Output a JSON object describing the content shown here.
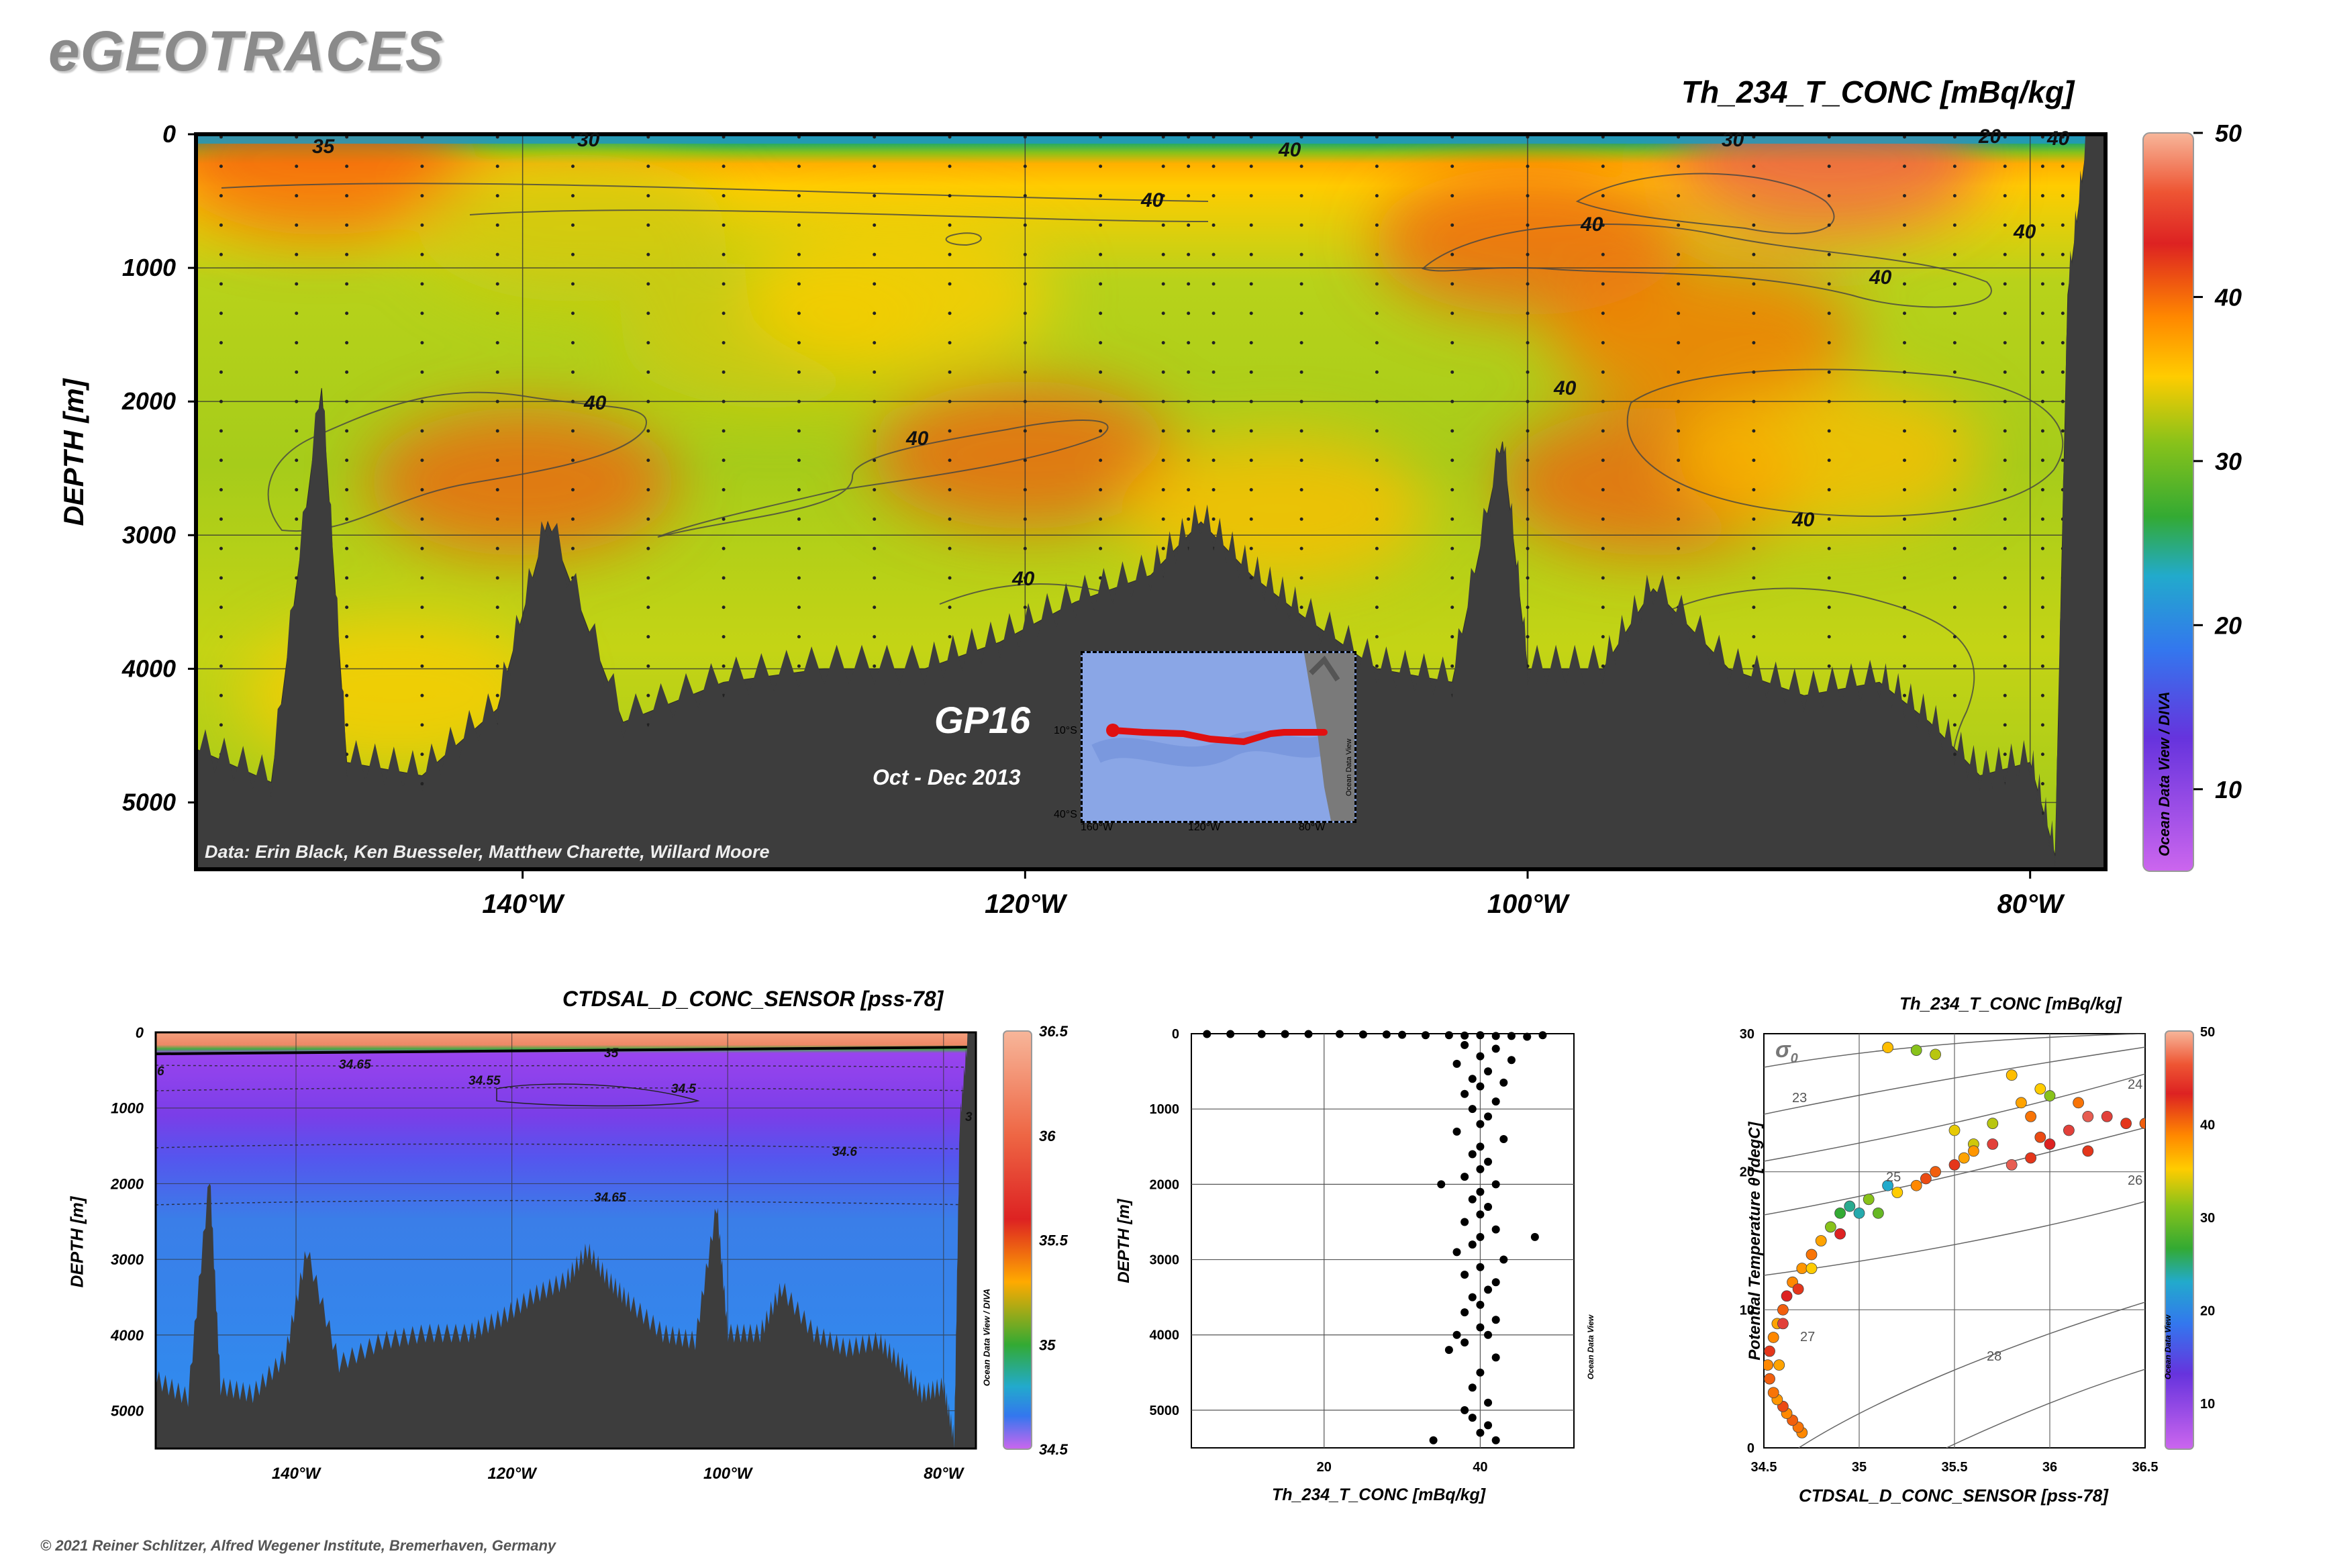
{
  "header": {
    "brand": "eGEOTRACES"
  },
  "main_section": {
    "variable": "Th_234_T_CONC [mBq/kg]",
    "ylabel": "DEPTH [m]",
    "depth_ticks": [
      "0",
      "1000",
      "2000",
      "3000",
      "4000",
      "5000"
    ],
    "lon_ticks": [
      "140°W",
      "120°W",
      "100°W",
      "80°W"
    ],
    "colorbar_ticks": [
      "50",
      "40",
      "30",
      "20",
      "10"
    ],
    "credit": "Data: Erin Black, Ken Buesseler, Matthew Charette, Willard Moore",
    "watermark": "Ocean Data View / DIVA",
    "cruise": "GP16",
    "cruise_dates": "Oct - Dec 2013",
    "inset": {
      "lat_labels": [
        "10°S",
        "40°S"
      ],
      "lon_labels": [
        "160°W",
        "120°W",
        "80°W"
      ],
      "watermark": "Ocean Data View"
    },
    "contour_labels": [
      "35",
      "30",
      "40",
      "40",
      "40",
      "40",
      "40",
      "40",
      "40",
      "40",
      "40",
      "30",
      "20",
      "40",
      "40"
    ]
  },
  "salinity_section": {
    "variable": "CTDSAL_D_CONC_SENSOR [pss-78]",
    "ylabel": "DEPTH [m]",
    "depth_ticks": [
      "0",
      "1000",
      "2000",
      "3000",
      "4000",
      "5000"
    ],
    "lon_ticks": [
      "140°W",
      "120°W",
      "100°W",
      "80°W"
    ],
    "colorbar_ticks": [
      "36.5",
      "36",
      "35.5",
      "35",
      "34.5"
    ],
    "watermark": "Ocean Data View / DIVA",
    "contour_labels": [
      "34.65",
      "34.55",
      "34.5",
      "34.6",
      "34.65",
      "35",
      "6",
      "3"
    ]
  },
  "scatter_profile": {
    "xlabel": "Th_234_T_CONC [mBq/kg]",
    "ylabel": "DEPTH [m]",
    "x_ticks": [
      "20",
      "40"
    ],
    "y_ticks": [
      "0",
      "1000",
      "2000",
      "3000",
      "4000",
      "5000"
    ],
    "watermark": "Ocean Data View"
  },
  "ts_plot": {
    "title": "Th_234_T_CONC [mBq/kg]",
    "xlabel": "CTDSAL_D_CONC_SENSOR [pss-78]",
    "ylabel": "Potential Temperature θ [degC]",
    "x_ticks": [
      "34.5",
      "35",
      "35.5",
      "36",
      "36.5"
    ],
    "y_ticks": [
      "0",
      "10",
      "20",
      "30"
    ],
    "sigma_label": "σ",
    "sigma_sub": "0",
    "isopycnal_labels": [
      "23",
      "24",
      "25",
      "26",
      "27",
      "28"
    ],
    "colorbar_ticks": [
      "50",
      "40",
      "30",
      "20",
      "10"
    ],
    "watermark": "Ocean Data View"
  },
  "footer": {
    "copyright": "© 2021 Reiner Schlitzer, Alfred Wegener Institute, Bremerhaven, Germany"
  },
  "chart_data": [
    {
      "type": "heatmap",
      "title": "Th_234_T_CONC [mBq/kg]",
      "xlabel": "",
      "ylabel": "DEPTH [m]",
      "x_range": [
        -153,
        -77
      ],
      "ylim": [
        5500,
        0
      ],
      "color_range": [
        5,
        50
      ],
      "colormap": [
        "#cc66ee",
        "#6633dd",
        "#3377ee",
        "#22aacc",
        "#33aa33",
        "#88c21a",
        "#ffcc00",
        "#ff8800",
        "#dd2222",
        "#f7b69a"
      ],
      "seafloor": [
        [
          -153,
          4600
        ],
        [
          -150,
          4850
        ],
        [
          -148,
          1900
        ],
        [
          -147,
          4700
        ],
        [
          -144,
          4800
        ],
        [
          -141,
          4300
        ],
        [
          -139,
          2900
        ],
        [
          -136,
          4400
        ],
        [
          -132,
          4100
        ],
        [
          -128,
          4000
        ],
        [
          -124,
          4000
        ],
        [
          -121,
          3800
        ],
        [
          -118,
          3500
        ],
        [
          -115,
          3300
        ],
        [
          -113,
          2900
        ],
        [
          -111,
          3300
        ],
        [
          -109,
          3600
        ],
        [
          -106,
          4000
        ],
        [
          -103,
          4100
        ],
        [
          -101,
          2300
        ],
        [
          -100,
          4000
        ],
        [
          -97,
          4000
        ],
        [
          -95,
          3400
        ],
        [
          -92,
          4000
        ],
        [
          -89,
          4200
        ],
        [
          -86,
          4100
        ],
        [
          -84,
          4400
        ],
        [
          -82,
          4800
        ],
        [
          -80,
          4700
        ],
        [
          -79,
          5400
        ],
        [
          -78.5,
          1200
        ],
        [
          -77.7,
          0
        ]
      ],
      "anomalies": [
        {
          "lon": -148,
          "depth": 200,
          "value": 42
        },
        {
          "lon": -138,
          "depth": 700,
          "value": 33
        },
        {
          "lon": -130,
          "depth": 1500,
          "value": 33
        },
        {
          "lon": -140,
          "depth": 2600,
          "value": 42
        },
        {
          "lon": -120,
          "depth": 2400,
          "value": 42
        },
        {
          "lon": -110,
          "depth": 2800,
          "value": 36
        },
        {
          "lon": -95,
          "depth": 2600,
          "value": 42
        },
        {
          "lon": -88,
          "depth": 2400,
          "value": 36
        },
        {
          "lon": -88,
          "depth": 200,
          "value": 47
        },
        {
          "lon": -100,
          "depth": 800,
          "value": 42
        },
        {
          "lon": -125,
          "depth": 1200,
          "value": 35
        },
        {
          "lon": -93,
          "depth": 1500,
          "value": 41
        },
        {
          "lon": -145,
          "depth": 4200,
          "value": 35
        }
      ]
    },
    {
      "type": "heatmap",
      "title": "CTDSAL_D_CONC_SENSOR [pss-78]",
      "ylabel": "DEPTH [m]",
      "x_range": [
        -153,
        -77
      ],
      "ylim": [
        5500,
        0
      ],
      "color_range": [
        34.5,
        36.5
      ]
    },
    {
      "type": "scatter",
      "xlabel": "Th_234_T_CONC [mBq/kg]",
      "ylabel": "DEPTH [m]",
      "xlim": [
        3,
        52
      ],
      "ylim": [
        5500,
        0
      ],
      "x": [
        5,
        8,
        12,
        15,
        18,
        22,
        25,
        28,
        30,
        33,
        36,
        38,
        40,
        42,
        44,
        46,
        48,
        38,
        42,
        40,
        44,
        37,
        41,
        39,
        43,
        40,
        38,
        42,
        39,
        41,
        40,
        37,
        43,
        40,
        39,
        41,
        40,
        38,
        42,
        40,
        39,
        41,
        40,
        38,
        42,
        40,
        39,
        37,
        43,
        40,
        38,
        42,
        41,
        39,
        40,
        38,
        42,
        35,
        47,
        40,
        41,
        38,
        36,
        42,
        40,
        39,
        41,
        38,
        37,
        39,
        41,
        40,
        42,
        34
      ],
      "y": [
        5,
        5,
        5,
        5,
        5,
        5,
        10,
        10,
        15,
        20,
        20,
        25,
        20,
        30,
        30,
        40,
        20,
        150,
        200,
        300,
        350,
        400,
        500,
        600,
        650,
        700,
        800,
        900,
        1000,
        1100,
        1200,
        1300,
        1400,
        1500,
        1600,
        1700,
        1800,
        1900,
        2000,
        2100,
        2200,
        2300,
        2400,
        2500,
        2600,
        2700,
        2800,
        2900,
        3000,
        3100,
        3200,
        3300,
        3400,
        3500,
        3600,
        3700,
        3800,
        2000,
        2700,
        3900,
        4000,
        4100,
        4200,
        4300,
        4500,
        4700,
        4900,
        5000,
        4000,
        5100,
        5200,
        5300,
        5400,
        5400
      ]
    },
    {
      "type": "scatter",
      "title": "Th_234_T_CONC [mBq/kg]",
      "xlabel": "CTDSAL_D_CONC_SENSOR [pss-78]",
      "ylabel": "Potential Temperature θ [degC]",
      "xlim": [
        34.5,
        36.5
      ],
      "ylim": [
        0,
        30
      ],
      "color_range": [
        5,
        50
      ],
      "points": [
        [
          34.7,
          1.1,
          40
        ],
        [
          34.68,
          1.5,
          41
        ],
        [
          34.65,
          2,
          42
        ],
        [
          34.62,
          2.5,
          40
        ],
        [
          34.6,
          3,
          43
        ],
        [
          34.57,
          3.5,
          39
        ],
        [
          34.55,
          4,
          41
        ],
        [
          34.53,
          5,
          42
        ],
        [
          34.52,
          6,
          40
        ],
        [
          34.53,
          7,
          44
        ],
        [
          34.55,
          8,
          40
        ],
        [
          34.57,
          9,
          38
        ],
        [
          34.6,
          10,
          42
        ],
        [
          34.62,
          11,
          45
        ],
        [
          34.65,
          12,
          40
        ],
        [
          34.7,
          13,
          39
        ],
        [
          34.75,
          14,
          41
        ],
        [
          34.8,
          15,
          38
        ],
        [
          34.85,
          16,
          30
        ],
        [
          34.9,
          17,
          25
        ],
        [
          34.95,
          17.5,
          22
        ],
        [
          35.05,
          18,
          30
        ],
        [
          35.15,
          19,
          20
        ],
        [
          35.2,
          18.5,
          35
        ],
        [
          35.3,
          19,
          40
        ],
        [
          35.4,
          20,
          42
        ],
        [
          35.5,
          20.5,
          44
        ],
        [
          35.55,
          21,
          38
        ],
        [
          35.6,
          22,
          33
        ],
        [
          35.7,
          22,
          46
        ],
        [
          35.8,
          20.5,
          47
        ],
        [
          35.9,
          21,
          44
        ],
        [
          36,
          22,
          45
        ],
        [
          36.1,
          23,
          46
        ],
        [
          36.2,
          24,
          47
        ],
        [
          36.3,
          24,
          46
        ],
        [
          36.4,
          23.5,
          44
        ],
        [
          36.5,
          23.5,
          42
        ],
        [
          35.9,
          24,
          41
        ],
        [
          35.85,
          25,
          38
        ],
        [
          35.95,
          26,
          35
        ],
        [
          35.7,
          23.5,
          32
        ],
        [
          35.3,
          28.8,
          30
        ],
        [
          35.4,
          28.5,
          32
        ],
        [
          35.15,
          29,
          36
        ],
        [
          35.8,
          27,
          36
        ],
        [
          36.0,
          25.5,
          30
        ],
        [
          36.15,
          25,
          41
        ],
        [
          35.5,
          23,
          34
        ],
        [
          35.95,
          22.5,
          43
        ],
        [
          34.75,
          13,
          35
        ],
        [
          34.68,
          11.5,
          44
        ],
        [
          34.6,
          9,
          46
        ],
        [
          34.58,
          6,
          38
        ],
        [
          34.9,
          15.5,
          45
        ],
        [
          35.1,
          17,
          28
        ],
        [
          35.0,
          17,
          21
        ],
        [
          35.35,
          19.5,
          43
        ],
        [
          35.6,
          21.5,
          39
        ],
        [
          36.2,
          21.5,
          44
        ]
      ]
    }
  ]
}
